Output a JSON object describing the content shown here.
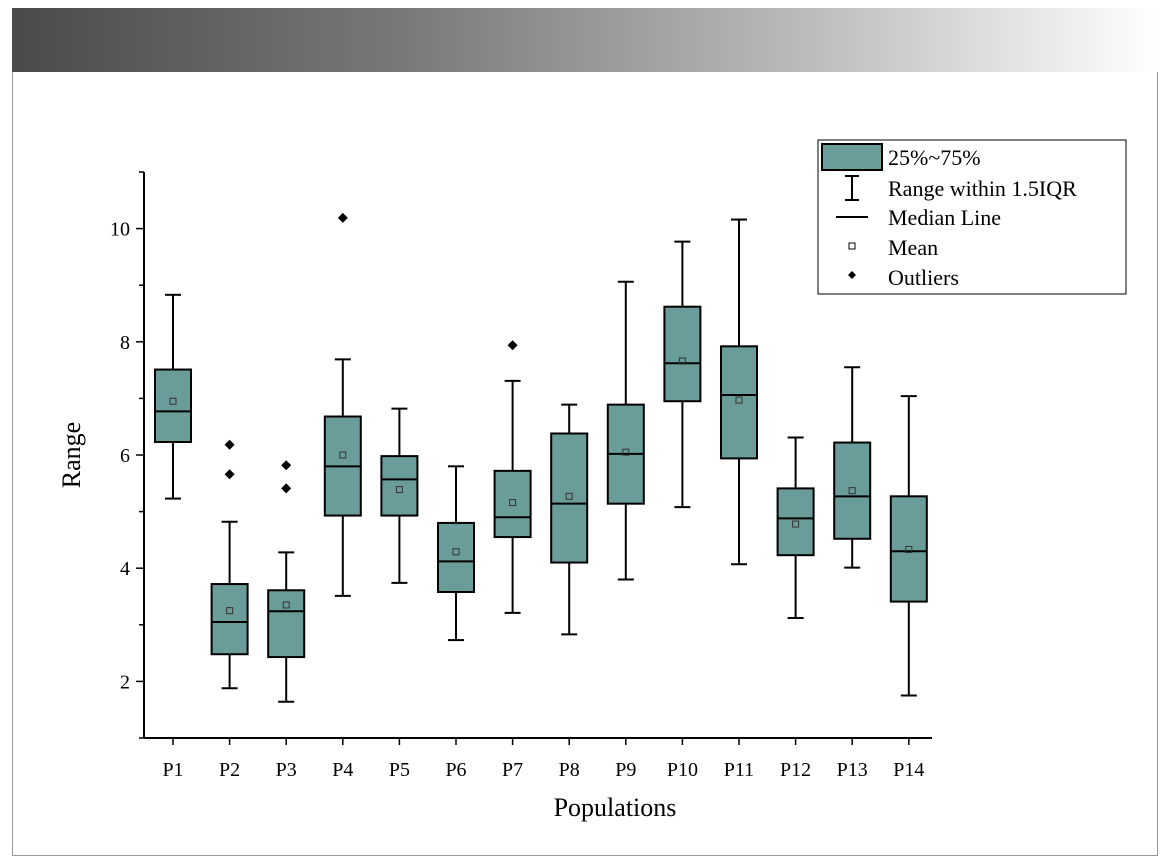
{
  "chart_data": {
    "type": "box",
    "xlabel": "Populations",
    "ylabel": "Range",
    "ylim": [
      1,
      11
    ],
    "yticks": [
      2,
      4,
      6,
      8,
      10
    ],
    "box_color": "#6a9c99",
    "categories": [
      "P1",
      "P2",
      "P3",
      "P4",
      "P5",
      "P6",
      "P7",
      "P8",
      "P9",
      "P10",
      "P11",
      "P12",
      "P13",
      "P14"
    ],
    "boxes": [
      {
        "name": "P1",
        "whisker_low": 5.23,
        "q1": 6.23,
        "median": 6.77,
        "q3": 7.51,
        "whisker_high": 8.83,
        "mean": 6.95,
        "outliers": []
      },
      {
        "name": "P2",
        "whisker_low": 1.88,
        "q1": 2.48,
        "median": 3.05,
        "q3": 3.72,
        "whisker_high": 4.82,
        "mean": 3.25,
        "outliers": [
          5.66,
          6.18
        ]
      },
      {
        "name": "P3",
        "whisker_low": 1.64,
        "q1": 2.43,
        "median": 3.24,
        "q3": 3.61,
        "whisker_high": 4.28,
        "mean": 3.35,
        "outliers": [
          5.41,
          5.82
        ]
      },
      {
        "name": "P4",
        "whisker_low": 3.51,
        "q1": 4.93,
        "median": 5.8,
        "q3": 6.68,
        "whisker_high": 7.69,
        "mean": 6.0,
        "outliers": [
          10.19
        ]
      },
      {
        "name": "P5",
        "whisker_low": 3.74,
        "q1": 4.93,
        "median": 5.57,
        "q3": 5.98,
        "whisker_high": 6.82,
        "mean": 5.39,
        "outliers": []
      },
      {
        "name": "P6",
        "whisker_low": 2.73,
        "q1": 3.58,
        "median": 4.12,
        "q3": 4.8,
        "whisker_high": 5.8,
        "mean": 4.29,
        "outliers": []
      },
      {
        "name": "P7",
        "whisker_low": 3.21,
        "q1": 4.55,
        "median": 4.9,
        "q3": 5.72,
        "whisker_high": 7.31,
        "mean": 5.16,
        "outliers": [
          7.94
        ]
      },
      {
        "name": "P8",
        "whisker_low": 2.83,
        "q1": 4.1,
        "median": 5.14,
        "q3": 6.38,
        "whisker_high": 6.89,
        "mean": 5.27,
        "outliers": []
      },
      {
        "name": "P9",
        "whisker_low": 3.8,
        "q1": 5.14,
        "median": 6.02,
        "q3": 6.89,
        "whisker_high": 9.06,
        "mean": 6.05,
        "outliers": []
      },
      {
        "name": "P10",
        "whisker_low": 5.08,
        "q1": 6.95,
        "median": 7.62,
        "q3": 8.62,
        "whisker_high": 9.77,
        "mean": 7.66,
        "outliers": []
      },
      {
        "name": "P11",
        "whisker_low": 4.07,
        "q1": 5.94,
        "median": 7.06,
        "q3": 7.92,
        "whisker_high": 10.16,
        "mean": 6.97,
        "outliers": []
      },
      {
        "name": "P12",
        "whisker_low": 3.12,
        "q1": 4.23,
        "median": 4.88,
        "q3": 5.41,
        "whisker_high": 6.31,
        "mean": 4.78,
        "outliers": []
      },
      {
        "name": "P13",
        "whisker_low": 4.01,
        "q1": 4.52,
        "median": 5.27,
        "q3": 6.22,
        "whisker_high": 7.55,
        "mean": 5.37,
        "outliers": []
      },
      {
        "name": "P14",
        "whisker_low": 1.75,
        "q1": 3.41,
        "median": 4.3,
        "q3": 5.27,
        "whisker_high": 7.04,
        "mean": 4.33,
        "outliers": []
      }
    ],
    "legend": {
      "placement": "top-right",
      "items": [
        "25%~75%",
        "Range within 1.5IQR",
        "Median Line",
        "Mean",
        "Outliers"
      ]
    }
  }
}
